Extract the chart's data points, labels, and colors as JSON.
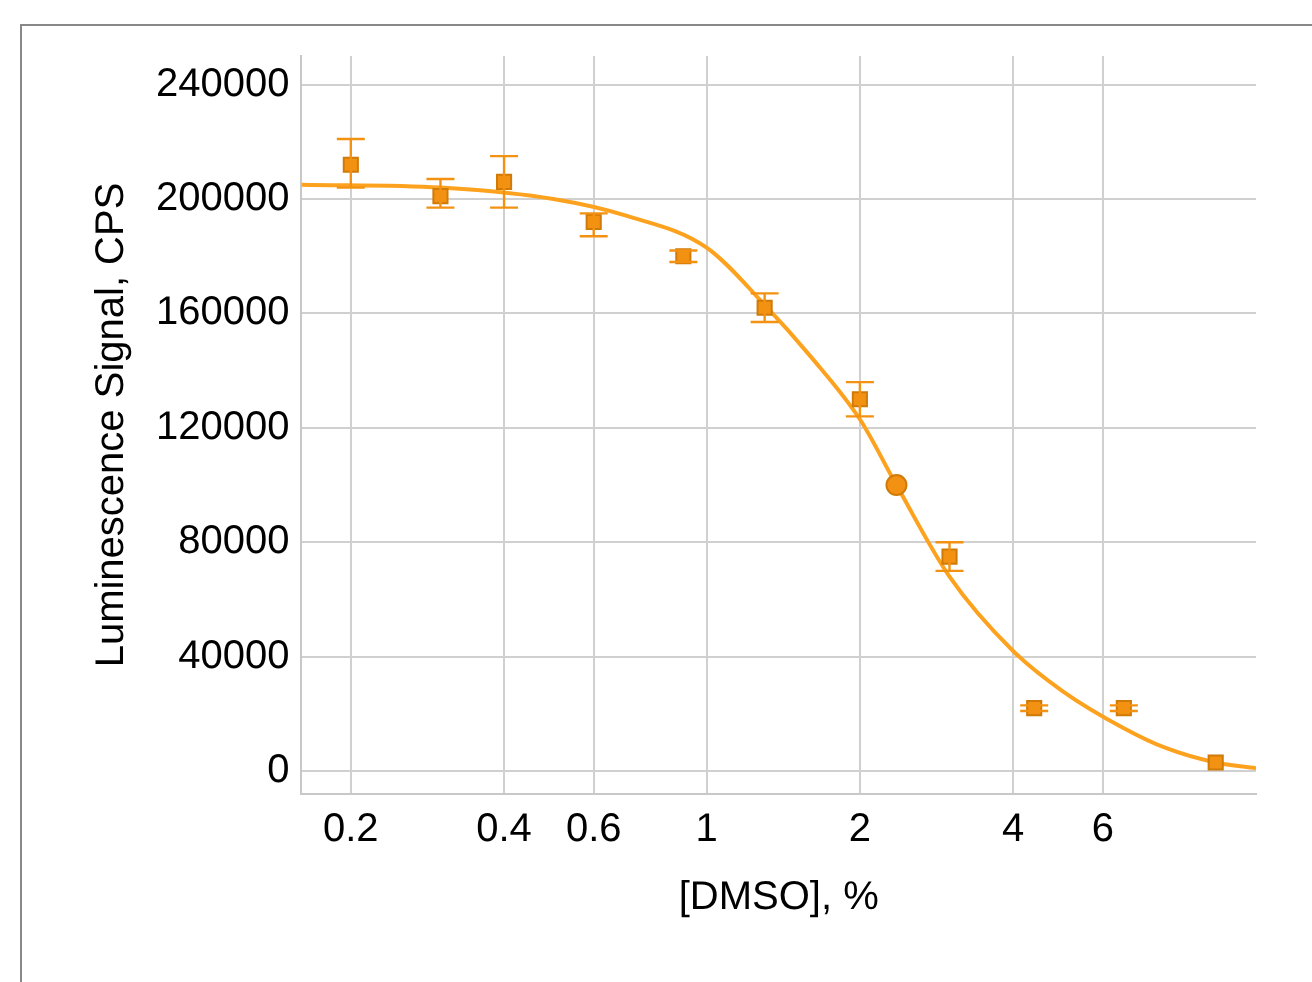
{
  "chart_data": {
    "type": "scatter",
    "xlabel": "[DMSO], %",
    "ylabel": "Luminescence Signal, CPS",
    "log": "x",
    "grid": true,
    "legend": false,
    "xlim": [
      0.16,
      12
    ],
    "xticks": [
      0.2,
      0.4,
      0.6,
      1,
      2,
      4,
      6
    ],
    "ylim": [
      -8000,
      250000
    ],
    "yticks": [
      0,
      40000,
      80000,
      120000,
      160000,
      200000,
      240000
    ],
    "series": [
      {
        "type": "line",
        "color": "#fca21e",
        "marker": "none",
        "x": [
          0.16,
          0.3,
          0.5,
          0.7,
          1,
          1.3,
          1.6,
          2,
          2.36,
          3,
          4,
          5,
          6.6,
          8,
          10,
          12
        ],
        "values": [
          205000,
          204000,
          200000,
          194000,
          183000,
          163000,
          145000,
          123000,
          100000,
          68000,
          42000,
          28000,
          15000,
          8000,
          3000,
          1000
        ]
      },
      {
        "type": "scatter",
        "color": "#f39212",
        "marker": "square",
        "x": [
          0.2,
          0.3,
          0.4,
          0.6,
          0.9,
          1.3,
          2,
          3,
          4.4,
          6.6,
          10
        ],
        "values": [
          212000,
          201000,
          206000,
          192000,
          180000,
          162000,
          130000,
          75000,
          22000,
          22000,
          3000
        ],
        "errors": [
          [
            204000,
            221000
          ],
          [
            197000,
            207000
          ],
          [
            197000,
            215000
          ],
          [
            187000,
            195000
          ],
          [
            178000,
            182000
          ],
          [
            157000,
            167000
          ],
          [
            124000,
            136000
          ],
          [
            70000,
            80000
          ],
          [
            21000,
            23000
          ],
          [
            21000,
            23000
          ],
          null
        ]
      },
      {
        "type": "scatter",
        "color": "#f39212",
        "marker": "circle",
        "x": [
          2.36
        ],
        "values": [
          100000
        ]
      }
    ]
  }
}
